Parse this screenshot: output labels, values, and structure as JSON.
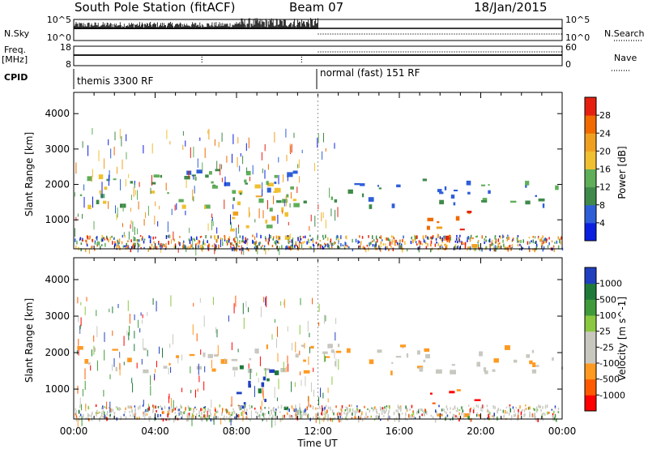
{
  "header": {
    "station": "South Pole Station (fitACF)",
    "beam": "Beam 07",
    "date": "18/Jan/2015"
  },
  "left_labels": {
    "nsky": "N.Sky",
    "freq": "Freq.",
    "mhz": "[MHz]",
    "cpid": "CPID"
  },
  "right_labels": {
    "nsearch": "N.Search",
    "nave": "Nave"
  },
  "cpid_segments": [
    "themis 3300 RF",
    "normal (fast) 151 RF"
  ],
  "colors": {
    "power": [
      "#0b1fe0",
      "#2f5fd8",
      "#3f8a4a",
      "#5fae58",
      "#f0c030",
      "#f0a020",
      "#f06a00",
      "#e62010"
    ],
    "velocity": [
      "#ff0000",
      "#ff5a00",
      "#ff9a20",
      "#c8c8c0",
      "#c8c8c0",
      "#8ac840",
      "#3f9a3a",
      "#1f7a3a",
      "#2040c0"
    ],
    "frame": "#000000"
  },
  "chart_data": [
    {
      "type": "line",
      "name": "noise",
      "y_left_ticks": [
        "10^5",
        "10^0"
      ],
      "y_right_ticks": [
        "10^5",
        "10^0"
      ]
    },
    {
      "type": "line",
      "name": "frequency",
      "y_left_ticks": [
        "18",
        "8"
      ],
      "y_right_ticks": [
        "60",
        "0"
      ]
    },
    {
      "type": "heatmap",
      "name": "power",
      "ylabel": "Slant Range [km]",
      "ylim": [
        180,
        4600
      ],
      "yticks": [
        "1000",
        "2000",
        "3000",
        "4000"
      ],
      "colorbar_label": "Power [dB]",
      "colorbar_ticks": [
        "4",
        "8",
        "12",
        "16",
        "20",
        "24",
        "28"
      ],
      "xlim_hours": [
        0,
        24
      ],
      "events": [
        {
          "t0": 0.0,
          "t1": 12.0,
          "r0": 1400,
          "r1": 2300,
          "level": 3
        },
        {
          "t0": 4.5,
          "t1": 11.5,
          "r0": 1900,
          "r1": 2500,
          "level": 2
        },
        {
          "t0": 7.5,
          "t1": 10.5,
          "r0": 400,
          "r1": 1700,
          "level": 4
        },
        {
          "t0": 12.5,
          "t1": 24.0,
          "r0": 1400,
          "r1": 2200,
          "level": 2
        },
        {
          "t0": 17.0,
          "t1": 20.0,
          "r0": 300,
          "r1": 1300,
          "level": 6
        }
      ]
    },
    {
      "type": "heatmap",
      "name": "velocity",
      "ylabel": "Slant Range [km]",
      "xlabel": "Time UT",
      "ylim": [
        180,
        4600
      ],
      "yticks": [
        "1000",
        "2000",
        "3000",
        "4000"
      ],
      "xticks": [
        "00:00",
        "04:00",
        "08:00",
        "12:00",
        "16:00",
        "20:00",
        "00:00"
      ],
      "colorbar_label": "Velocity [m s^-1]",
      "colorbar_ticks": [
        "1000",
        "500",
        "100",
        "25",
        "-25",
        "-100",
        "-500",
        "-1000"
      ],
      "xlim_hours": [
        0,
        24
      ],
      "events": [
        {
          "t0": 0.0,
          "t1": 24.0,
          "r0": 1500,
          "r1": 2300,
          "level": 3
        },
        {
          "t0": 7.5,
          "t1": 10.5,
          "r0": 500,
          "r1": 1700,
          "level": 8
        },
        {
          "t0": 17.5,
          "t1": 20.0,
          "r0": 300,
          "r1": 1000,
          "level": 1
        }
      ]
    }
  ]
}
